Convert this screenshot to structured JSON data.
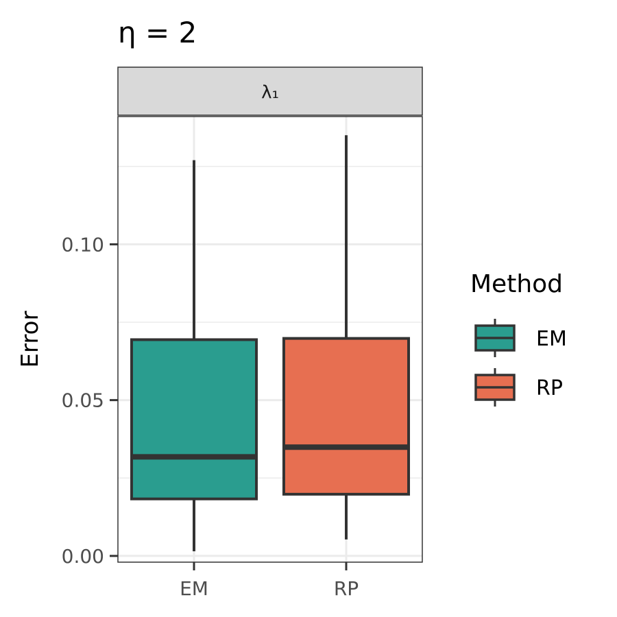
{
  "chart_data": {
    "type": "boxplot",
    "title": "η = 2",
    "facet_label": "λ₁",
    "xlabel": "",
    "ylabel": "Error",
    "categories": [
      "EM",
      "RP"
    ],
    "ylim": [
      -0.002,
      0.141
    ],
    "y_ticks": [
      0.0,
      0.05,
      0.1
    ],
    "y_tick_labels": [
      "0.00",
      "0.05",
      "0.10"
    ],
    "grid": true,
    "legend": {
      "title": "Method",
      "placement": "right",
      "entries": [
        "EM",
        "RP"
      ]
    },
    "series": [
      {
        "name": "EM",
        "color": "#2a9d8f",
        "min": 0.0015,
        "q1": 0.0183,
        "median": 0.0318,
        "q3": 0.0694,
        "max": 0.127
      },
      {
        "name": "RP",
        "color": "#e76f51",
        "min": 0.0053,
        "q1": 0.0198,
        "median": 0.0349,
        "q3": 0.0698,
        "max": 0.135
      }
    ]
  }
}
